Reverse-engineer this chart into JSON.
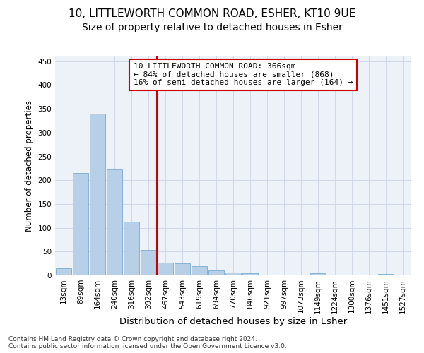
{
  "title1": "10, LITTLEWORTH COMMON ROAD, ESHER, KT10 9UE",
  "title2": "Size of property relative to detached houses in Esher",
  "xlabel": "Distribution of detached houses by size in Esher",
  "ylabel": "Number of detached properties",
  "bar_labels": [
    "13sqm",
    "89sqm",
    "164sqm",
    "240sqm",
    "316sqm",
    "392sqm",
    "467sqm",
    "543sqm",
    "619sqm",
    "694sqm",
    "770sqm",
    "846sqm",
    "921sqm",
    "997sqm",
    "1073sqm",
    "1149sqm",
    "1224sqm",
    "1300sqm",
    "1376sqm",
    "1451sqm",
    "1527sqm"
  ],
  "bar_values": [
    15,
    215,
    340,
    222,
    113,
    53,
    26,
    25,
    20,
    10,
    6,
    4,
    1,
    0,
    0,
    4,
    1,
    0,
    0,
    3,
    0
  ],
  "bar_color": "#b8cfe8",
  "bar_edge_color": "#7aabcf",
  "vline_x": 5.5,
  "vline_color": "#cc0000",
  "annotation_text": "10 LITTLEWORTH COMMON ROAD: 366sqm\n← 84% of detached houses are smaller (868)\n16% of semi-detached houses are larger (164) →",
  "annotation_box_color": "#ffffff",
  "annotation_box_edge": "#cc0000",
  "ylim": [
    0,
    460
  ],
  "yticks": [
    0,
    50,
    100,
    150,
    200,
    250,
    300,
    350,
    400,
    450
  ],
  "grid_color": "#d0d8e8",
  "bg_color": "#edf1f8",
  "footer_text": "Contains HM Land Registry data © Crown copyright and database right 2024.\nContains public sector information licensed under the Open Government Licence v3.0.",
  "title1_fontsize": 11,
  "title2_fontsize": 10,
  "xlabel_fontsize": 9.5,
  "ylabel_fontsize": 8.5,
  "tick_fontsize": 7.5,
  "annotation_fontsize": 8,
  "footer_fontsize": 6.5
}
